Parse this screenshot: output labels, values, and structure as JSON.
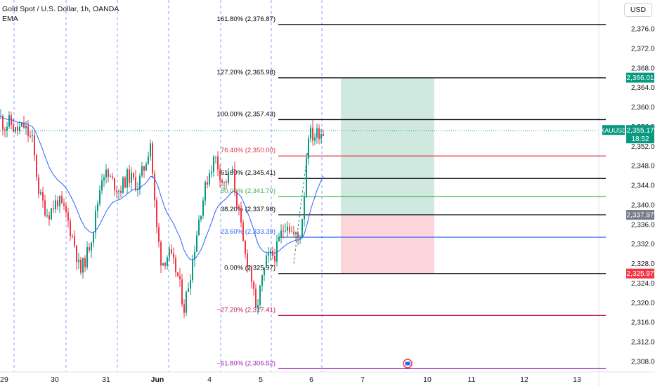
{
  "header": {
    "symbol_title": "Gold Spot / U.S. Dollar, 1h, OANDA",
    "indicator": "EMA",
    "currency_button": "USD"
  },
  "colors": {
    "up": "#089981",
    "down": "#f23645",
    "ema": "#2962ff",
    "session_line": "#6a8bff",
    "fib_black": "#000000",
    "fib_red": "#e0344c",
    "fib_green": "#4caf50",
    "fib_blue": "#2962ff",
    "fib_magenta": "#c2185b",
    "fib_purple": "#9c27b0",
    "reward_zone": "#cfe9e1",
    "risk_zone": "#fbd5d9",
    "badge_green": "#089981",
    "badge_gray": "#787b86",
    "badge_red": "#f23645"
  },
  "chart_data": {
    "type": "candlestick",
    "instrument": "XAUUSD",
    "y_axis": {
      "min": 2306,
      "max": 2378,
      "ticks": [
        "2,376.00",
        "2,372.00",
        "2,368.00",
        "2,364.00",
        "2,360.00",
        "2,356.00",
        "2,352.00",
        "2,348.00",
        "2,344.00",
        "2,340.00",
        "2,336.00",
        "2,332.00",
        "2,328.00",
        "2,324.00",
        "2,320.00",
        "2,316.00",
        "2,312.00",
        "2,308.00"
      ],
      "tick_values": [
        2376,
        2372,
        2368,
        2364,
        2360,
        2356,
        2352,
        2348,
        2344,
        2340,
        2336,
        2332,
        2328,
        2324,
        2320,
        2316,
        2312,
        2308
      ]
    },
    "x_axis": {
      "labels": [
        "29",
        "30",
        "31",
        "Jun",
        "4",
        "5",
        "6",
        "7",
        "10",
        "11",
        "12",
        "13"
      ]
    },
    "fib_levels": [
      {
        "label": "161.80% (2,376.87)",
        "value": 2376.87,
        "color": "#000000"
      },
      {
        "label": "127.20% (2,365.98)",
        "value": 2365.98,
        "color": "#000000"
      },
      {
        "label": "100.00% (2,357.43)",
        "value": 2357.43,
        "color": "#000000"
      },
      {
        "label": "76.40% (2,350.00)",
        "value": 2350.0,
        "color": "#e0344c"
      },
      {
        "label": "61.80% (2,345.41)",
        "value": 2345.41,
        "color": "#000000"
      },
      {
        "label": "50.00% (2,341.70)",
        "value": 2341.7,
        "color": "#4caf50"
      },
      {
        "label": "38.20% (2,337.98)",
        "value": 2337.98,
        "color": "#000000"
      },
      {
        "label": "23.60% (2,333.39)",
        "value": 2333.39,
        "color": "#2962ff"
      },
      {
        "label": "0.00% (2,325.97)",
        "value": 2325.97,
        "color": "#000000"
      },
      {
        "label": "−27.20% (2,317.41)",
        "value": 2317.41,
        "color": "#c2185b"
      },
      {
        "label": "−61.80% (2,306.52)",
        "value": 2306.52,
        "color": "#9c27b0"
      }
    ],
    "price_badges": [
      {
        "label": "2,366.01",
        "value": 2366.01,
        "color": "#089981"
      },
      {
        "label": "2,337.97",
        "value": 2337.97,
        "color": "#787b86"
      },
      {
        "label": "2,325.97",
        "value": 2325.97,
        "color": "#f23645"
      }
    ],
    "current_price": {
      "symbol": "XAUUSD",
      "price": "2,355.17",
      "countdown": "18:52",
      "value": 2355.17
    },
    "position": {
      "entry": 2337.97,
      "target": 2366.01,
      "stop": 2325.97
    },
    "grid": false
  }
}
